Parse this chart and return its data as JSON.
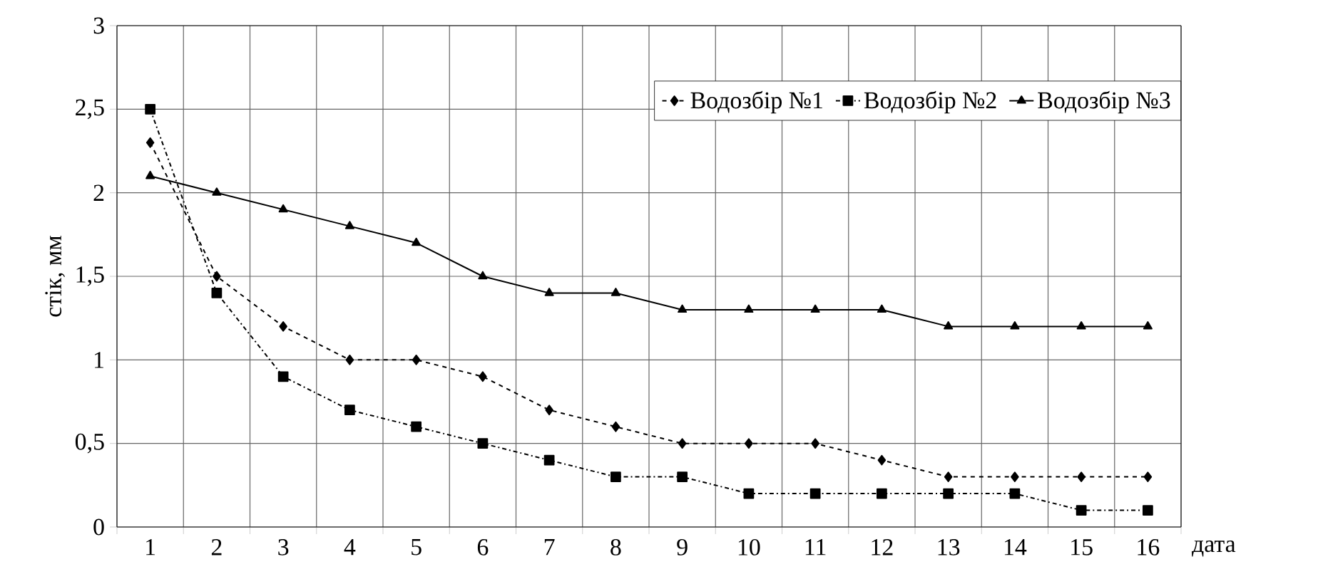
{
  "chart_data": {
    "type": "line",
    "ylabel": "стік, мм",
    "xlabel": "дата",
    "categories": [
      "1",
      "2",
      "3",
      "4",
      "5",
      "6",
      "7",
      "8",
      "9",
      "10",
      "11",
      "12",
      "13",
      "14",
      "15",
      "16"
    ],
    "series": [
      {
        "name": "Водозбір №1",
        "color": "#000000",
        "marker": "diamond",
        "line_style": "dashed",
        "values": [
          2.3,
          1.5,
          1.2,
          1.0,
          1.0,
          0.9,
          0.7,
          0.6,
          0.5,
          0.5,
          0.5,
          0.4,
          0.3,
          0.3,
          0.3,
          0.3
        ]
      },
      {
        "name": "Водозбір №2",
        "color": "#000000",
        "marker": "square",
        "line_style": "dashdot",
        "values": [
          2.5,
          1.4,
          0.9,
          0.7,
          0.6,
          0.5,
          0.4,
          0.3,
          0.3,
          0.2,
          0.2,
          0.2,
          0.2,
          0.2,
          0.1,
          0.1
        ]
      },
      {
        "name": "Водозбір №3",
        "color": "#000000",
        "marker": "triangle",
        "line_style": "solid",
        "values": [
          2.1,
          2.0,
          1.9,
          1.8,
          1.7,
          1.5,
          1.4,
          1.4,
          1.3,
          1.3,
          1.3,
          1.3,
          1.2,
          1.2,
          1.2,
          1.2
        ]
      }
    ],
    "ylim": [
      0,
      3
    ],
    "yticks": [
      0,
      {
        "value": 0.5,
        "label": "0,5"
      },
      1,
      {
        "value": 1.5,
        "label": "1,5"
      },
      2,
      {
        "value": 2.5,
        "label": "2,5"
      },
      3
    ],
    "grid": true,
    "legend": "top right"
  }
}
